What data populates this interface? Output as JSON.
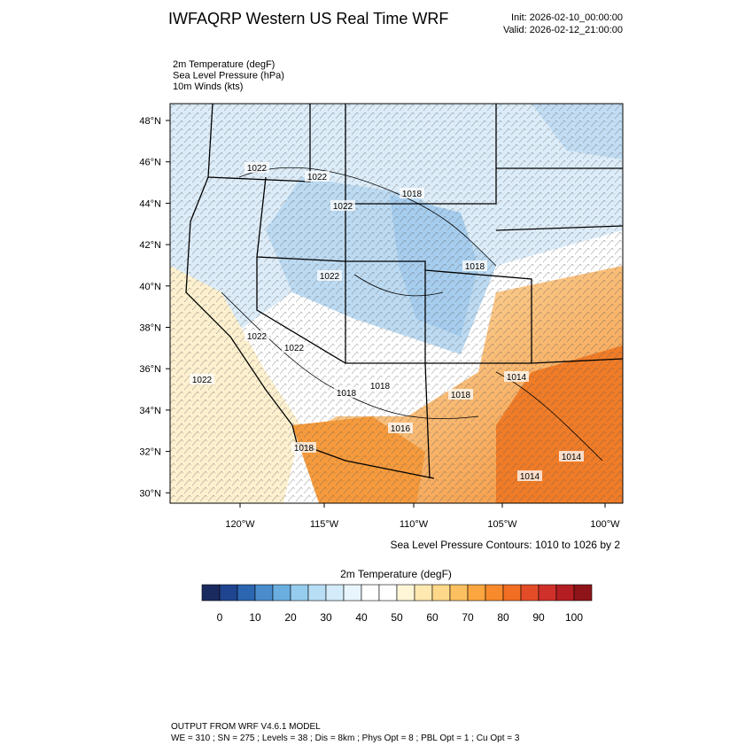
{
  "header": {
    "title": "IWFAQRP Western US Real Time WRF",
    "init": "Init: 2026-02-10_00:00:00",
    "valid": "Valid: 2026-02-12_21:00:00"
  },
  "fields": [
    "2m Temperature   (degF)",
    "Sea Level Pressure   (hPa)",
    "10m Winds   (kts)"
  ],
  "map": {
    "lat_labels": [
      "48°N",
      "46°N",
      "44°N",
      "42°N",
      "40°N",
      "38°N",
      "36°N",
      "34°N",
      "32°N",
      "30°N"
    ],
    "lon_labels": [
      "120°W",
      "115°W",
      "110°W",
      "105°W",
      "100°W"
    ],
    "contour_labels": [
      "1022",
      "1022",
      "1022",
      "1018",
      "1018",
      "1022",
      "1022",
      "1022",
      "1022",
      "1018",
      "1018",
      "1018",
      "1014",
      "1016",
      "1018",
      "1014",
      "1014"
    ],
    "contour_note": "Sea Level Pressure Contours: 1010 to 1026 by 2"
  },
  "colorbar": {
    "title": "2m Temperature  (degF)",
    "colors": [
      "#1b2a5e",
      "#1f4590",
      "#2c66b0",
      "#4a8ccc",
      "#6aaee0",
      "#96cdef",
      "#b8def5",
      "#d4ebf9",
      "#e9f5fc",
      "#ffffff",
      "#ffffff",
      "#fff6d8",
      "#ffe9b0",
      "#fed88a",
      "#fdc060",
      "#fca640",
      "#f88a2c",
      "#f26e22",
      "#e44c28",
      "#d0302a",
      "#b41e22",
      "#8e141a"
    ],
    "labels": [
      0,
      10,
      20,
      30,
      40,
      50,
      60,
      70,
      80,
      90,
      100
    ]
  },
  "footer": {
    "line1": "OUTPUT FROM WRF V4.6.1 MODEL",
    "line2": "WE = 310 ; SN = 275 ; Levels = 38 ; Dis = 8km ; Phys Opt = 8 ; PBL Opt = 1 ; Cu Opt = 3"
  }
}
